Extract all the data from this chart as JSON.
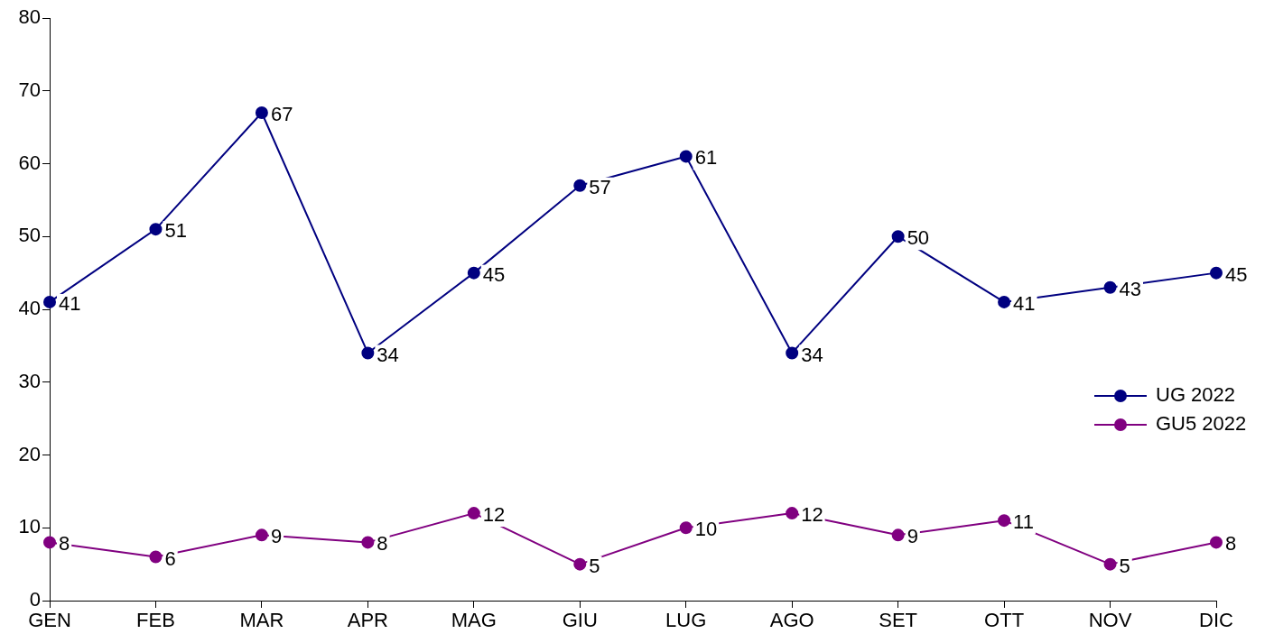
{
  "chart_data": {
    "type": "line",
    "categories": [
      "GEN",
      "FEB",
      "MAR",
      "APR",
      "MAG",
      "GIU",
      "LUG",
      "AGO",
      "SET",
      "OTT",
      "NOV",
      "DIC"
    ],
    "series": [
      {
        "name": "UG 2022",
        "color": "#000080",
        "values": [
          41,
          51,
          67,
          34,
          45,
          57,
          61,
          34,
          50,
          41,
          43,
          45
        ]
      },
      {
        "name": "GU5 2022",
        "color": "#800080",
        "values": [
          8,
          6,
          9,
          8,
          12,
          5,
          10,
          12,
          9,
          11,
          5,
          8
        ]
      }
    ],
    "ylim": [
      0,
      80
    ],
    "yticks": [
      0,
      10,
      20,
      30,
      40,
      50,
      60,
      70,
      80
    ],
    "grid": false,
    "legend": "right",
    "marker": "circle",
    "line_style": "solid",
    "data_labels": true
  }
}
